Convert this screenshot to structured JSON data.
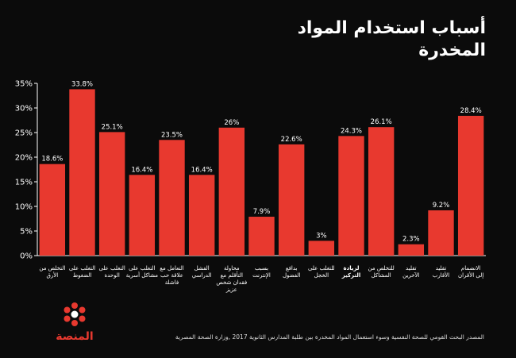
{
  "title": "أسباب استخدام المواد المخدرة",
  "source": "المصدر البحث القومي للصحة النفسية وسوء استعمال المواد المخدرة بين طلبة المدارس الثانوية 2017 ,وزارة الصحة المصرية",
  "logo_text": "المنصة",
  "colors": {
    "bar": "#e8392f",
    "background": "#0b0b0b",
    "axis": "#ffffff",
    "text": "#ffffff"
  },
  "chart_data": {
    "type": "bar",
    "ylim": [
      0,
      35
    ],
    "y_ticks": [
      "0%",
      "5%",
      "10%",
      "15%",
      "20%",
      "25%",
      "30%",
      "35%"
    ],
    "grid": false,
    "categories": [
      "التخلص من الأرق",
      "التغلب على الضغوط",
      "التغلب على الوحدة",
      "التغلب على مشاكل أسرية",
      "التعامل مع علاقة حب فاشلة",
      "الفشل الدراسي",
      "محاولة التأقلم مع فقدان شخص عزيز",
      "بسبب الإنترنت",
      "بدافع الفضول",
      "للتغلب على الخجل",
      "لزيادة التركيز",
      "للتخلص من المشاكل",
      "تقليد الآخرين",
      "تقليد الأقارب",
      "الانضمام إلى الأقران"
    ],
    "values": [
      18.6,
      33.8,
      25.1,
      16.4,
      23.5,
      16.4,
      26,
      7.9,
      22.6,
      3,
      24.3,
      26.1,
      2.3,
      9.2,
      28.4
    ],
    "value_labels": [
      "18.6%",
      "33.8%",
      "25.1%",
      "16.4%",
      "23.5%",
      "16.4%",
      "26%",
      "7.9%",
      "22.6%",
      "3%",
      "24.3%",
      "26.1%",
      "2.3%",
      "9.2%",
      "28.4%"
    ],
    "highlight_category": "لزيادة التركيز"
  }
}
